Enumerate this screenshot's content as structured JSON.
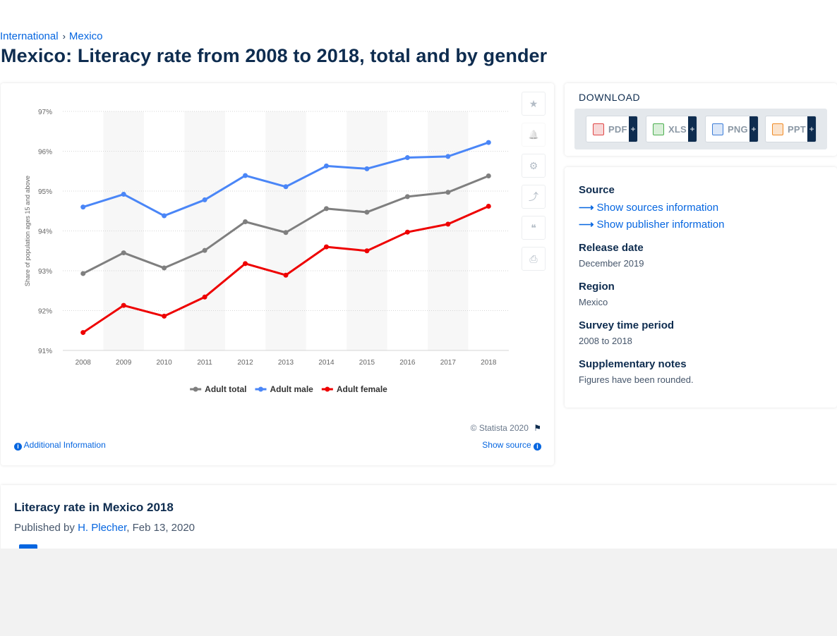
{
  "breadcrumb": {
    "items": [
      "International",
      "Mexico"
    ],
    "separator": "›"
  },
  "title": "Mexico: Literacy rate from 2008 to 2018, total and by gender",
  "chart_data": {
    "type": "line",
    "x": [
      "2008",
      "2009",
      "2010",
      "2011",
      "2012",
      "2013",
      "2014",
      "2015",
      "2016",
      "2017",
      "2018"
    ],
    "series": [
      {
        "name": "Adult total",
        "color": "#7f7f7f",
        "values": [
          92.93,
          93.45,
          93.07,
          93.51,
          94.23,
          93.96,
          94.56,
          94.47,
          94.86,
          94.97,
          95.38
        ]
      },
      {
        "name": "Adult male",
        "color": "#4a86f7",
        "values": [
          94.6,
          94.92,
          94.38,
          94.78,
          95.39,
          95.11,
          95.63,
          95.56,
          95.84,
          95.87,
          96.22
        ]
      },
      {
        "name": "Adult female",
        "color": "#ee0000",
        "values": [
          91.45,
          92.13,
          91.86,
          92.34,
          93.18,
          92.89,
          93.6,
          93.5,
          93.97,
          94.17,
          94.62
        ]
      }
    ],
    "ylim": [
      91,
      97
    ],
    "yticks": [
      "91%",
      "92%",
      "93%",
      "94%",
      "95%",
      "96%",
      "97%"
    ],
    "ylabel": "Share of population ages 15 and above",
    "xlabel": "",
    "legend_position": "bottom",
    "grid": true
  },
  "chart_footer": {
    "copyright": "© Statista 2020",
    "additional_info": "Additional Information",
    "show_source": "Show source"
  },
  "tools": [
    {
      "icon": "star-icon",
      "glyph": "★"
    },
    {
      "icon": "bell-icon",
      "glyph": "🔔"
    },
    {
      "icon": "gear-icon",
      "glyph": "⚙"
    },
    {
      "icon": "share-icon",
      "glyph": "⤴"
    },
    {
      "icon": "quote-icon",
      "glyph": "❝"
    },
    {
      "icon": "print-icon",
      "glyph": "⎙"
    }
  ],
  "download": {
    "title": "DOWNLOAD",
    "buttons": [
      {
        "label": "PDF",
        "icon_color": "#e04646",
        "plus": "+"
      },
      {
        "label": "XLS",
        "icon_color": "#4caf50",
        "plus": "+"
      },
      {
        "label": "PNG",
        "icon_color": "#3b7dd8",
        "plus": "+"
      },
      {
        "label": "PPT",
        "icon_color": "#f08a24",
        "plus": "+"
      }
    ]
  },
  "meta": {
    "source_label": "Source",
    "show_sources": "Show sources information",
    "show_publisher": "Show publisher information",
    "release_label": "Release date",
    "release_value": "December 2019",
    "region_label": "Region",
    "region_value": "Mexico",
    "survey_label": "Survey time period",
    "survey_value": "2008 to 2018",
    "notes_label": "Supplementary notes",
    "notes_value": "Figures have been rounded."
  },
  "article": {
    "title": "Literacy rate in Mexico 2018",
    "published_by": "Published by",
    "author": "H. Plecher",
    "date": ", Feb 13, 2020"
  }
}
